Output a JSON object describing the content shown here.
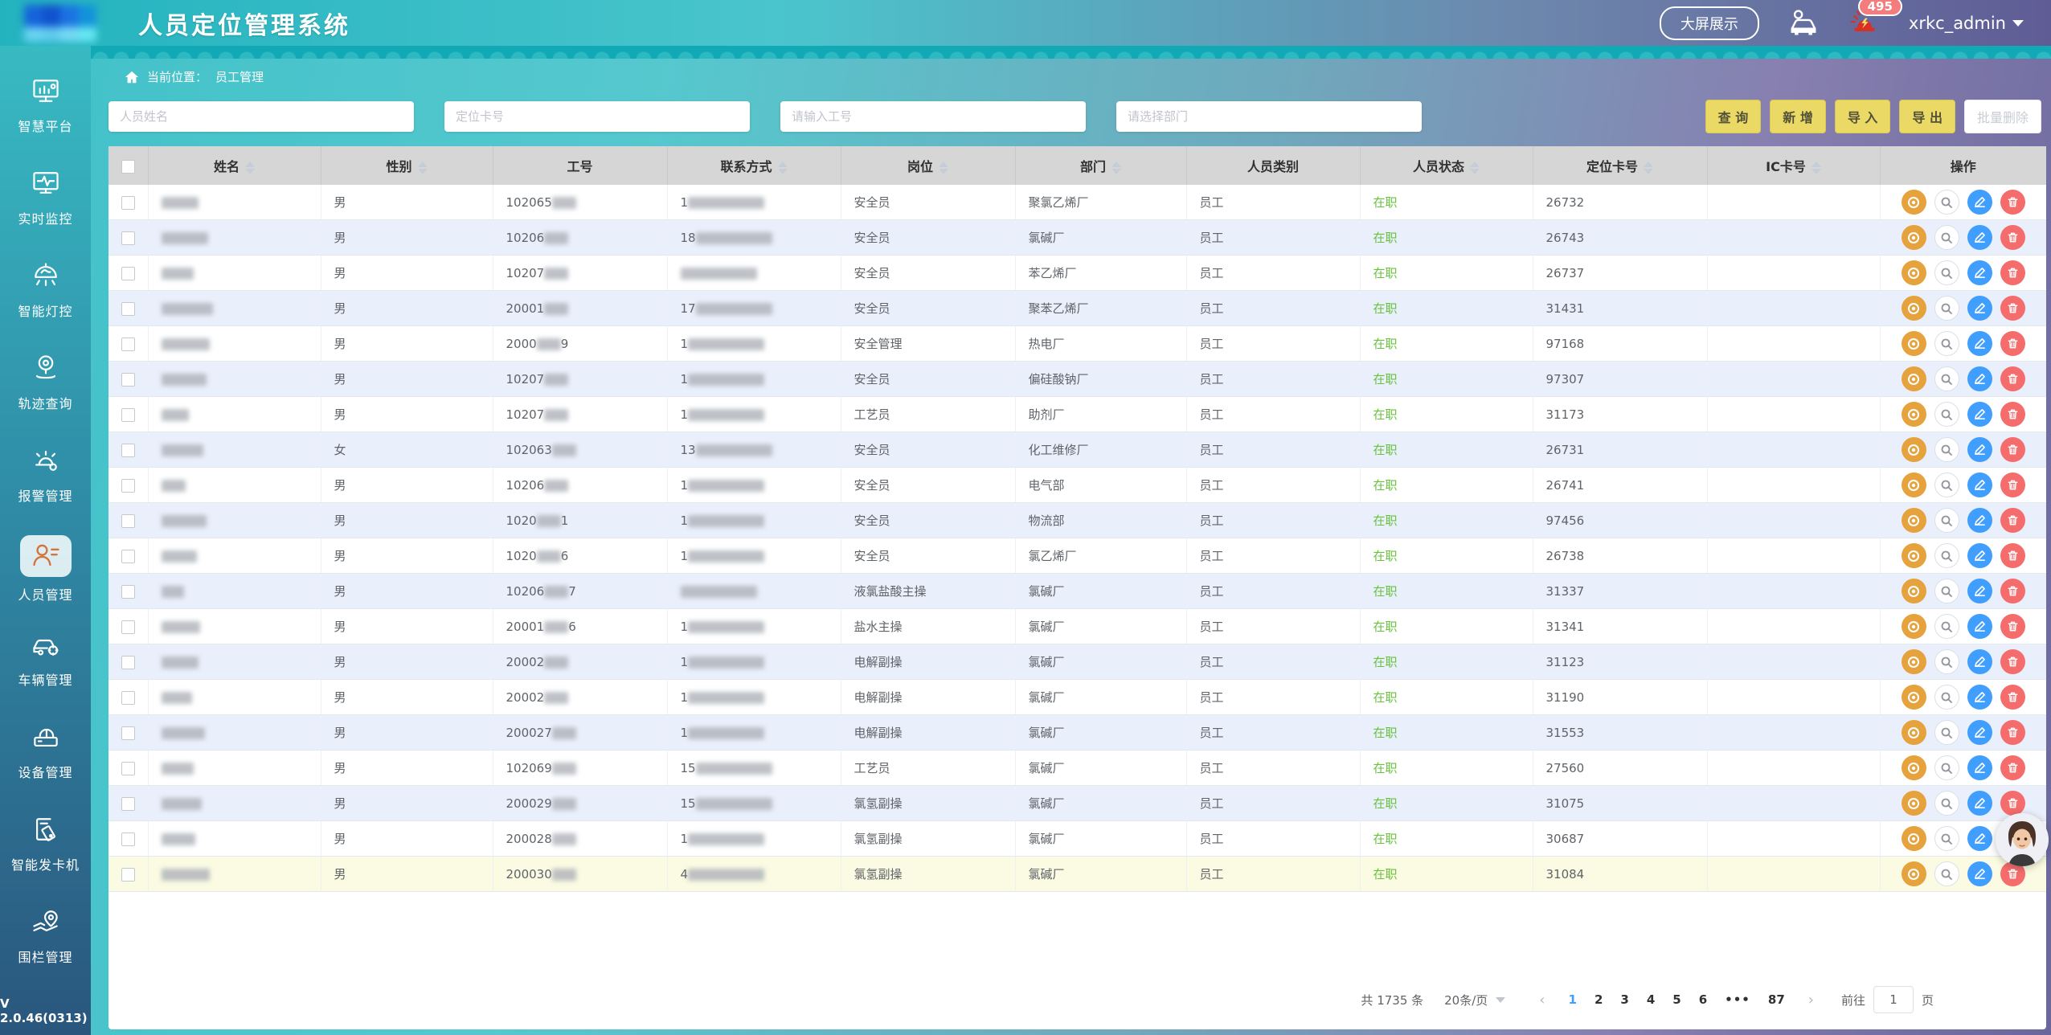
{
  "header": {
    "title": "人员定位管理系统",
    "big_screen_button": "大屏展示",
    "alarm_badge": "495",
    "username": "xrkc_admin"
  },
  "sidebar": {
    "items": [
      {
        "label": "智慧平台",
        "icon": "platform-icon",
        "active": false
      },
      {
        "label": "实时监控",
        "icon": "realtime-monitor-icon",
        "active": false
      },
      {
        "label": "智能灯控",
        "icon": "smart-lamp-icon",
        "active": false
      },
      {
        "label": "轨迹查询",
        "icon": "track-query-icon",
        "active": false
      },
      {
        "label": "报警管理",
        "icon": "alarm-manage-icon",
        "active": false
      },
      {
        "label": "人员管理",
        "icon": "person-manage-icon",
        "active": true
      },
      {
        "label": "车辆管理",
        "icon": "vehicle-manage-icon",
        "active": false
      },
      {
        "label": "设备管理",
        "icon": "device-manage-icon",
        "active": false
      },
      {
        "label": "智能发卡机",
        "icon": "card-dispenser-icon",
        "active": false
      },
      {
        "label": "围栏管理",
        "icon": "fence-manage-icon",
        "active": false
      }
    ],
    "version": "V 2.0.46(0313)"
  },
  "breadcrumb": {
    "prefix": "当前位置：",
    "current": "员工管理"
  },
  "filters": {
    "name_placeholder": "人员姓名",
    "card_placeholder": "定位卡号",
    "jobno_placeholder": "请输入工号",
    "dept_placeholder": "请选择部门"
  },
  "actions": {
    "search": "查 询",
    "add": "新 增",
    "import": "导 入",
    "export": "导 出",
    "batch_delete": "批量删除"
  },
  "table": {
    "columns": [
      {
        "key": "checkbox",
        "label": "",
        "sortable": false
      },
      {
        "key": "name",
        "label": "姓名",
        "sortable": true
      },
      {
        "key": "gender",
        "label": "性别",
        "sortable": true
      },
      {
        "key": "jobno",
        "label": "工号",
        "sortable": false
      },
      {
        "key": "phone",
        "label": "联系方式",
        "sortable": true
      },
      {
        "key": "position",
        "label": "岗位",
        "sortable": true
      },
      {
        "key": "department",
        "label": "部门",
        "sortable": true
      },
      {
        "key": "category",
        "label": "人员类别",
        "sortable": false
      },
      {
        "key": "status",
        "label": "人员状态",
        "sortable": true
      },
      {
        "key": "cardno",
        "label": "定位卡号",
        "sortable": true
      },
      {
        "key": "icno",
        "label": "IC卡号",
        "sortable": true
      },
      {
        "key": "ops",
        "label": "操作",
        "sortable": false
      }
    ],
    "rows": [
      {
        "gender": "男",
        "job_prefix": "102065",
        "job_suffix": "",
        "phone_prefix": "1",
        "position": "安全员",
        "department": "聚氯乙烯厂",
        "category": "员工",
        "status": "在职",
        "card_no": "26732",
        "ic_no": "",
        "highlight": false
      },
      {
        "gender": "男",
        "job_prefix": "10206",
        "job_suffix": "",
        "phone_prefix": "18",
        "position": "安全员",
        "department": "氯碱厂",
        "category": "员工",
        "status": "在职",
        "card_no": "26743",
        "ic_no": "",
        "highlight": false
      },
      {
        "gender": "男",
        "job_prefix": "10207",
        "job_suffix": "",
        "phone_prefix": "",
        "position": "安全员",
        "department": "苯乙烯厂",
        "category": "员工",
        "status": "在职",
        "card_no": "26737",
        "ic_no": "",
        "highlight": false
      },
      {
        "gender": "男",
        "job_prefix": "20001",
        "job_suffix": "",
        "phone_prefix": "17",
        "position": "安全员",
        "department": "聚苯乙烯厂",
        "category": "员工",
        "status": "在职",
        "card_no": "31431",
        "ic_no": "",
        "highlight": false
      },
      {
        "gender": "男",
        "job_prefix": "2000",
        "job_suffix": "9",
        "phone_prefix": "1",
        "position": "安全管理",
        "department": "热电厂",
        "category": "员工",
        "status": "在职",
        "card_no": "97168",
        "ic_no": "",
        "highlight": false
      },
      {
        "gender": "男",
        "job_prefix": "10207",
        "job_suffix": "",
        "phone_prefix": "1",
        "position": "安全员",
        "department": "偏硅酸钠厂",
        "category": "员工",
        "status": "在职",
        "card_no": "97307",
        "ic_no": "",
        "highlight": false
      },
      {
        "gender": "男",
        "job_prefix": "10207",
        "job_suffix": "",
        "phone_prefix": "1",
        "position": "工艺员",
        "department": "助剂厂",
        "category": "员工",
        "status": "在职",
        "card_no": "31173",
        "ic_no": "",
        "highlight": false
      },
      {
        "gender": "女",
        "job_prefix": "102063",
        "job_suffix": "",
        "phone_prefix": "13",
        "position": "安全员",
        "department": "化工维修厂",
        "category": "员工",
        "status": "在职",
        "card_no": "26731",
        "ic_no": "",
        "highlight": false
      },
      {
        "gender": "男",
        "job_prefix": "10206",
        "job_suffix": "",
        "phone_prefix": "1",
        "position": "安全员",
        "department": "电气部",
        "category": "员工",
        "status": "在职",
        "card_no": "26741",
        "ic_no": "",
        "highlight": false
      },
      {
        "gender": "男",
        "job_prefix": "1020",
        "job_suffix": "1",
        "phone_prefix": "1",
        "position": "安全员",
        "department": "物流部",
        "category": "员工",
        "status": "在职",
        "card_no": "97456",
        "ic_no": "",
        "highlight": false
      },
      {
        "gender": "男",
        "job_prefix": "1020",
        "job_suffix": "6",
        "phone_prefix": "1",
        "position": "安全员",
        "department": "氯乙烯厂",
        "category": "员工",
        "status": "在职",
        "card_no": "26738",
        "ic_no": "",
        "highlight": false
      },
      {
        "gender": "男",
        "job_prefix": "10206",
        "job_suffix": "7",
        "phone_prefix": "",
        "position": "液氯盐酸主操",
        "department": "氯碱厂",
        "category": "员工",
        "status": "在职",
        "card_no": "31337",
        "ic_no": "",
        "highlight": false
      },
      {
        "gender": "男",
        "job_prefix": "20001",
        "job_suffix": "6",
        "phone_prefix": "1",
        "position": "盐水主操",
        "department": "氯碱厂",
        "category": "员工",
        "status": "在职",
        "card_no": "31341",
        "ic_no": "",
        "highlight": false
      },
      {
        "gender": "男",
        "job_prefix": "20002",
        "job_suffix": "",
        "phone_prefix": "1",
        "position": "电解副操",
        "department": "氯碱厂",
        "category": "员工",
        "status": "在职",
        "card_no": "31123",
        "ic_no": "",
        "highlight": false
      },
      {
        "gender": "男",
        "job_prefix": "20002",
        "job_suffix": "",
        "phone_prefix": "1",
        "position": "电解副操",
        "department": "氯碱厂",
        "category": "员工",
        "status": "在职",
        "card_no": "31190",
        "ic_no": "",
        "highlight": false
      },
      {
        "gender": "男",
        "job_prefix": "200027",
        "job_suffix": "",
        "phone_prefix": "1",
        "position": "电解副操",
        "department": "氯碱厂",
        "category": "员工",
        "status": "在职",
        "card_no": "31553",
        "ic_no": "",
        "highlight": false
      },
      {
        "gender": "男",
        "job_prefix": "102069",
        "job_suffix": "",
        "phone_prefix": "15",
        "position": "工艺员",
        "department": "氯碱厂",
        "category": "员工",
        "status": "在职",
        "card_no": "27560",
        "ic_no": "",
        "highlight": false
      },
      {
        "gender": "男",
        "job_prefix": "200029",
        "job_suffix": "",
        "phone_prefix": "15",
        "position": "氯氢副操",
        "department": "氯碱厂",
        "category": "员工",
        "status": "在职",
        "card_no": "31075",
        "ic_no": "",
        "highlight": false
      },
      {
        "gender": "男",
        "job_prefix": "200028",
        "job_suffix": "",
        "phone_prefix": "1",
        "position": "氯氢副操",
        "department": "氯碱厂",
        "category": "员工",
        "status": "在职",
        "card_no": "30687",
        "ic_no": "",
        "highlight": false
      },
      {
        "gender": "男",
        "job_prefix": "200030",
        "job_suffix": "",
        "phone_prefix": "4",
        "position": "氯氢副操",
        "department": "氯碱厂",
        "category": "员工",
        "status": "在职",
        "card_no": "31084",
        "ic_no": "",
        "highlight": true
      }
    ]
  },
  "pagination": {
    "total": "共 1735 条",
    "page_size": "20条/页",
    "pages": [
      "1",
      "2",
      "3",
      "4",
      "5",
      "6",
      "•••",
      "87"
    ],
    "active_page": "1",
    "goto_label": "前往",
    "goto_value": "1",
    "page_unit": "页"
  }
}
